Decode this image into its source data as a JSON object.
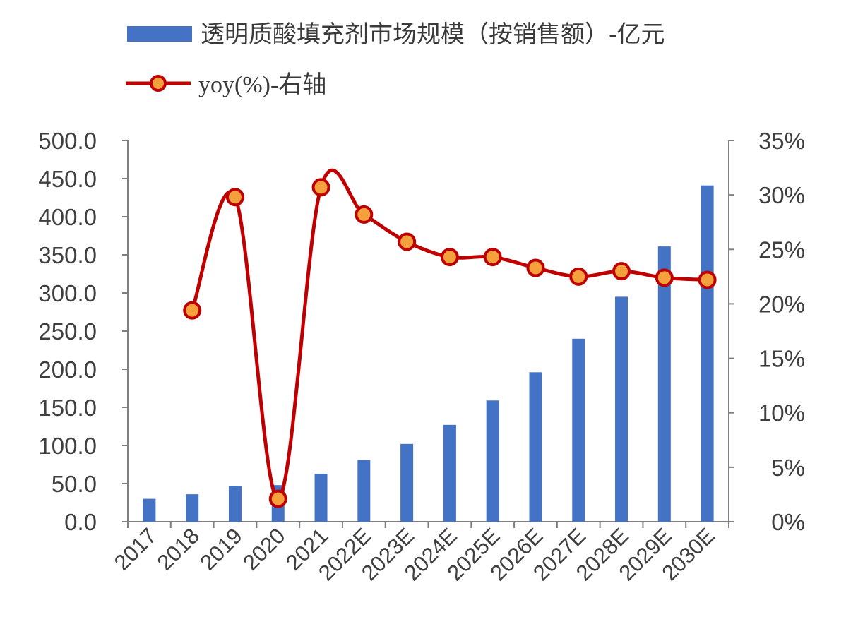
{
  "chart_data": {
    "type": "bar",
    "categories": [
      "2017",
      "2018",
      "2019",
      "2020",
      "2021",
      "2022E",
      "2023E",
      "2024E",
      "2025E",
      "2026E",
      "2027E",
      "2028E",
      "2029E",
      "2030E"
    ],
    "series": [
      {
        "name": "透明质酸填充剂市场规模（按销售额）-亿元",
        "type": "bar",
        "axis": "left",
        "color": "#4472c4",
        "values": [
          30.0,
          36.0,
          47.0,
          48.0,
          63.0,
          81.0,
          102.0,
          127.0,
          159.0,
          196.0,
          240.0,
          295.0,
          361.0,
          441.0
        ]
      },
      {
        "name": "yoy(%)-右轴",
        "type": "line",
        "axis": "right",
        "color": "#c00000",
        "marker_fill": "#f4a03c",
        "values": [
          null,
          19.4,
          29.8,
          2.1,
          30.7,
          28.2,
          25.7,
          24.3,
          24.3,
          23.3,
          22.5,
          23.0,
          22.4,
          22.2
        ]
      }
    ],
    "left_axis": {
      "ylim": [
        0,
        500
      ],
      "ticks": [
        "0.0",
        "50.0",
        "100.0",
        "150.0",
        "200.0",
        "250.0",
        "300.0",
        "350.0",
        "400.0",
        "450.0",
        "500.0"
      ]
    },
    "right_axis": {
      "ylim": [
        0,
        35
      ],
      "ticks": [
        "0%",
        "5%",
        "10%",
        "15%",
        "20%",
        "25%",
        "30%",
        "35%"
      ]
    },
    "legend_position": "top",
    "grid": false
  }
}
